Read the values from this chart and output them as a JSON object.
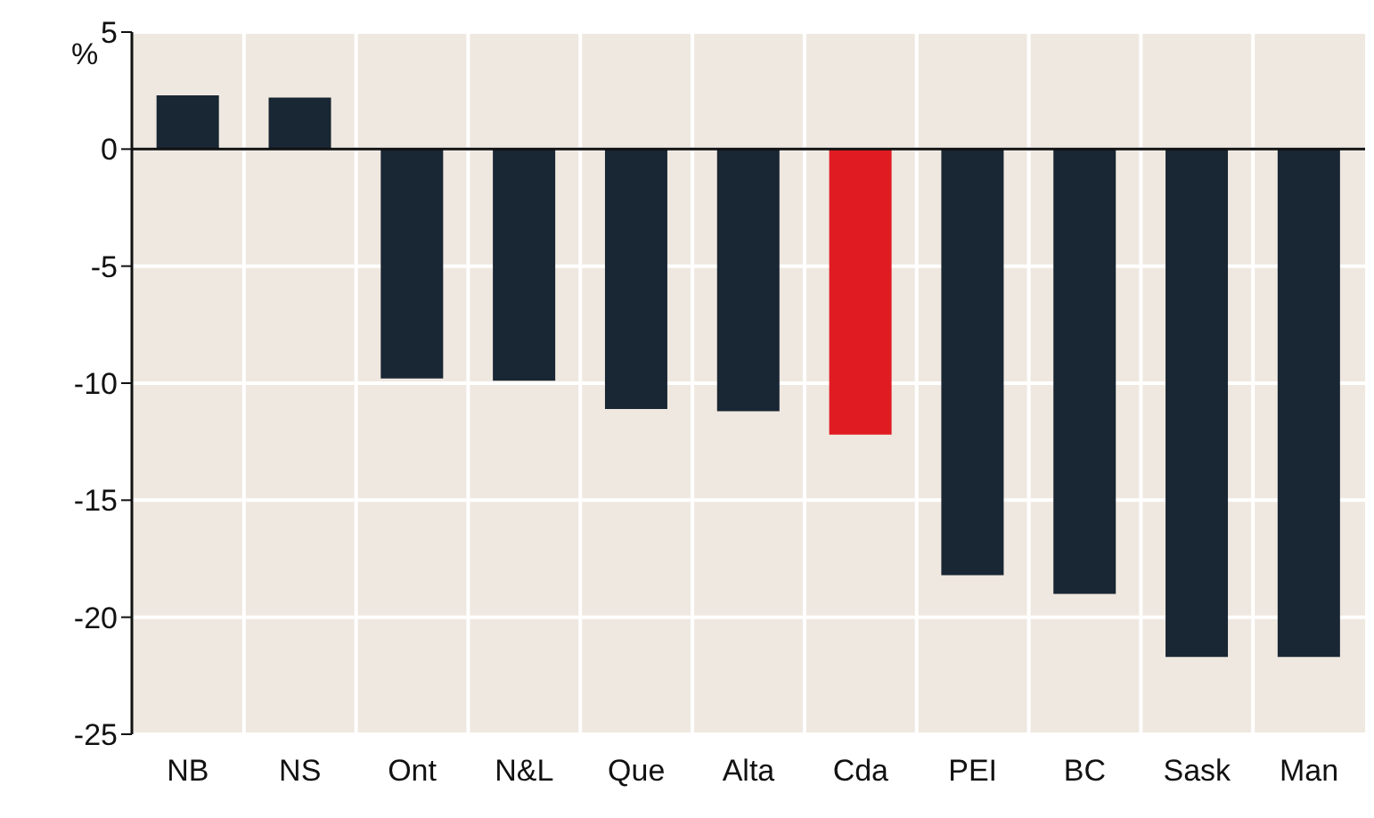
{
  "chart_data": {
    "type": "bar",
    "ylabel": "%",
    "categories": [
      "NB",
      "NS",
      "Ont",
      "N&L",
      "Que",
      "Alta",
      "Cda",
      "PEI",
      "BC",
      "Sask",
      "Man"
    ],
    "values": [
      2.3,
      2.2,
      -9.8,
      -9.9,
      -11.1,
      -11.2,
      -12.2,
      -18.2,
      -19.0,
      -21.7,
      -21.7
    ],
    "colors": [
      "#192633",
      "#192633",
      "#192633",
      "#192633",
      "#192633",
      "#192633",
      "#e01b22",
      "#192633",
      "#192633",
      "#192633",
      "#192633"
    ],
    "ylim": [
      -25,
      5
    ],
    "yticks": [
      -25,
      -20,
      -15,
      -10,
      -5,
      0,
      5
    ],
    "grid": true
  }
}
